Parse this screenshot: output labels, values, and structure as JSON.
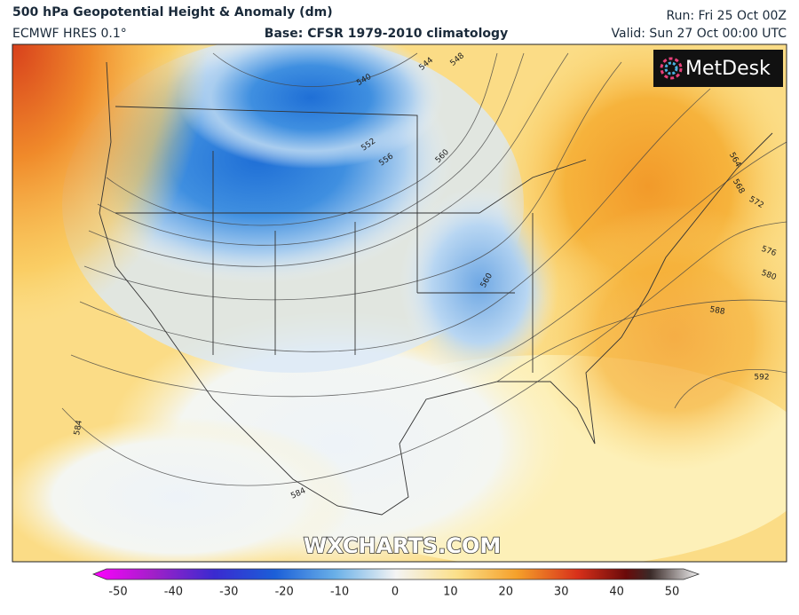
{
  "header": {
    "title": "500 hPa Geopotential Height & Anomaly (dm)",
    "model": "ECMWF HRES 0.1°",
    "base": "Base: CFSR 1979-2010 climatology",
    "run": "Run: Fri 25 Oct 00Z",
    "valid": "Valid: Sun 27 Oct 00:00 UTC"
  },
  "logo": "MetDesk",
  "watermark": "WXCHARTS.COM",
  "contour_labels": [
    540,
    544,
    548,
    552,
    556,
    560,
    560,
    564,
    568,
    572,
    576,
    580,
    588,
    592,
    584,
    584
  ],
  "colorbar": {
    "ticks": [
      -50,
      -40,
      -30,
      -20,
      -10,
      0,
      10,
      20,
      30,
      40,
      50
    ]
  }
}
